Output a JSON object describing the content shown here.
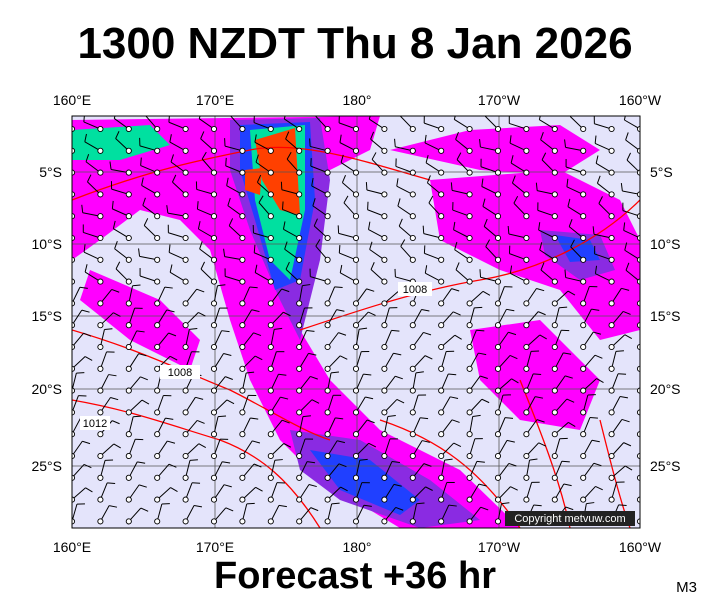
{
  "title": "1300 NZDT Thu 8 Jan 2026",
  "subtitle": "Forecast +36 hr",
  "model": "M3",
  "copyright": "Copyright metvuw.com",
  "longitude_labels": [
    "160°E",
    "170°E",
    "180°",
    "170°W",
    "160°W"
  ],
  "latitude_labels": [
    "5°S",
    "10°S",
    "15°S",
    "20°S",
    "25°S"
  ],
  "isobar_labels": [
    "1008",
    "1008",
    "1012"
  ]
}
